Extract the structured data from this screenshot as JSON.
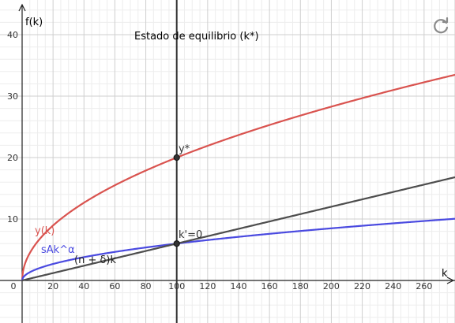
{
  "chart_data": {
    "type": "line",
    "xlabel": "k",
    "ylabel": "f(k)",
    "xlim": [
      0,
      280
    ],
    "ylim": [
      0,
      44
    ],
    "x_ticks": [
      0,
      20,
      40,
      60,
      80,
      100,
      120,
      140,
      160,
      180,
      200,
      220,
      240,
      260
    ],
    "y_ticks": [
      10,
      20,
      30,
      40
    ],
    "grid": true,
    "series": [
      {
        "name": "y(k)",
        "color": "#d9534f",
        "x": [
          0,
          5,
          10,
          20,
          40,
          60,
          80,
          100,
          140,
          180,
          220,
          260,
          280
        ],
        "values": [
          0,
          4.47,
          6.32,
          8.94,
          12.65,
          15.49,
          17.89,
          20.0,
          23.66,
          26.83,
          29.66,
          32.25,
          33.47
        ]
      },
      {
        "name": "sAk^α",
        "color": "#4a4ae0",
        "x": [
          0,
          5,
          10,
          20,
          40,
          60,
          80,
          100,
          140,
          180,
          220,
          260,
          280
        ],
        "values": [
          0,
          1.34,
          1.9,
          2.68,
          3.79,
          4.65,
          5.37,
          6.0,
          7.1,
          8.05,
          8.9,
          9.67,
          10.04
        ]
      },
      {
        "name": "(n + δ)k",
        "color": "#4d4d4d",
        "x": [
          0,
          100,
          280
        ],
        "values": [
          0,
          6.0,
          16.8
        ]
      }
    ],
    "vertical_line": {
      "x": 100,
      "color": "#333333"
    },
    "points": [
      {
        "x": 100,
        "y": 20,
        "label": "y*"
      },
      {
        "x": 100,
        "y": 6,
        "label": "k'=0"
      }
    ],
    "annotation": "Estado de equilibrio (k*)"
  },
  "icons": {
    "reset": "refresh-icon"
  }
}
